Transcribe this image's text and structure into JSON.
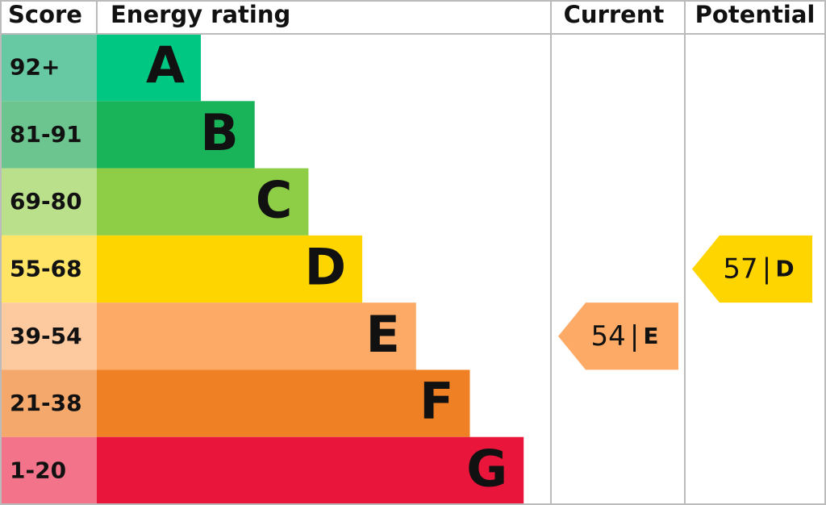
{
  "headers": {
    "score": "Score",
    "rating": "Energy rating",
    "current": "Current",
    "potential": "Potential"
  },
  "bands": [
    {
      "score": "92+",
      "letter": "A",
      "color": "#00c781",
      "score_color": "#66c9a4"
    },
    {
      "score": "81-91",
      "letter": "B",
      "color": "#19b459",
      "score_color": "#6cc58f"
    },
    {
      "score": "69-80",
      "letter": "C",
      "color": "#8dce46",
      "score_color": "#bbe08b"
    },
    {
      "score": "55-68",
      "letter": "D",
      "color": "#ffd500",
      "score_color": "#ffe466"
    },
    {
      "score": "39-54",
      "letter": "E",
      "color": "#fcaa65",
      "score_color": "#fdcaa0"
    },
    {
      "score": "21-38",
      "letter": "F",
      "color": "#ef8023",
      "score_color": "#f5a86b"
    },
    {
      "score": "1-20",
      "letter": "G",
      "color": "#e9153b",
      "score_color": "#f2738a"
    }
  ],
  "current": {
    "value": 54,
    "separator": "|",
    "letter": "E"
  },
  "potential": {
    "value": 57,
    "separator": "|",
    "letter": "D"
  }
}
